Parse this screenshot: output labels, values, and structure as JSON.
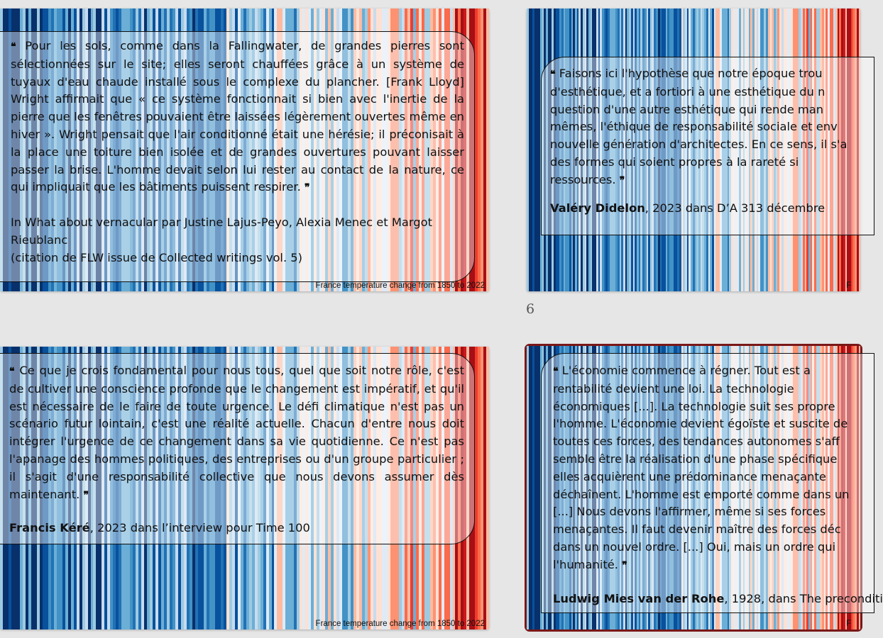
{
  "page_number": "6",
  "stripe_source_caption": "France temperature change from 1850 to 2022",
  "stripe_source_caption_cropped": "F",
  "colors": {
    "background": "#e6e6e6",
    "selection_border": "#7a1717",
    "stripe_palette": [
      "#08306b",
      "#08519c",
      "#2171b5",
      "#4292c6",
      "#6baed6",
      "#9ecae1",
      "#c6dbef",
      "#deebf7",
      "#fee0d2",
      "#fcbba1",
      "#fc9272",
      "#fb6a4a",
      "#ef3b2c",
      "#cb181d",
      "#a50f15",
      "#67000d"
    ]
  },
  "slides": [
    {
      "id": "slide-1",
      "quote_open": "❝",
      "quote": "Pour les sols, comme dans la Fallingwater, de grandes pierres sont sélectionnées sur le site; elles seront chauffées grâce à un système de tuyaux d'eau chaude installé sous le complexe du plancher. [Frank Lloyd] Wright affirmait que « ce système fonctionnait si bien avec l'inertie de la pierre que les fenêtres pouvaient être laissées légèrement ouvertes même en hiver ». Wright pensait que l'air conditionné était une hérésie; il préconisait à la place une toiture bien isolée et de grandes ouvertures pouvant laisser passer la brise. L'homme devait selon lui rester au contact de la nature, ce qui impliquait que les bâtiments puissent respirer.",
      "quote_close": "❞",
      "attribution_line1": "In What about vernacular par Justine Lajus-Peyo, Alexia Menec et Margot Rieublanc",
      "attribution_line2": "(citation de FLW issue de Collected writings vol. 5)"
    },
    {
      "id": "slide-2",
      "quote_open": "❝",
      "quote": "Faisons ici l'hypothèse que notre époque trou d'esthétique, et a fortiori à une esthétique du n question d'une autre esthétique qui rende man mêmes, l'éthique de responsabilité sociale et env nouvelle génération d'architectes. En ce sens, il s'a des formes qui soient propres à la rareté si ressources.",
      "quote_close": "❞",
      "author": "Valéry Didelon",
      "attribution_rest": ", 2023 dans D’A 313 décembre"
    },
    {
      "id": "slide-3",
      "quote_open": "❝",
      "quote": "Ce que je crois fondamental pour nous tous, quel que soit notre rôle, c'est de cultiver une conscience profonde que le changement est impératif, et qu'il est nécessaire de le faire de toute urgence. Le défi climatique n'est pas un scénario futur lointain, c'est une réalité actuelle. Chacun d'entre nous doit intégrer l'urgence de ce changement dans sa vie quotidienne. Ce n'est pas l'apanage des hommes politiques, des entreprises ou d'un groupe particulier ; il s'agit d'une responsabilité collective que nous devons assumer dès maintenant.",
      "quote_close": "❞",
      "author": "Francis Kéré",
      "attribution_rest": ", 2023 dans l’interview pour Time 100"
    },
    {
      "id": "slide-4",
      "quote_open": "❝",
      "quote": "L'économie commence à régner. Tout est a rentabilité devient une loi. La technologie économiques [...]. La technologie suit ses propre l'homme. L'économie devient égoïste et suscite de toutes ces forces, des tendances autonomes s'aff semble être la réalisation d'une phase spécifique elles acquièrent une prédominance menaçante déchaînent. L'homme est emporté comme dans un [...] Nous devons l'affirmer, même si ses forces menaçantes. Il faut devenir maître des forces déc dans un nouvel ordre. [...] Oui, mais un ordre qui l'humanité.",
      "quote_close": "❞",
      "author": "Ludwig Mies van der Rohe",
      "attribution_rest": ", 1928, dans The preconditi"
    }
  ]
}
